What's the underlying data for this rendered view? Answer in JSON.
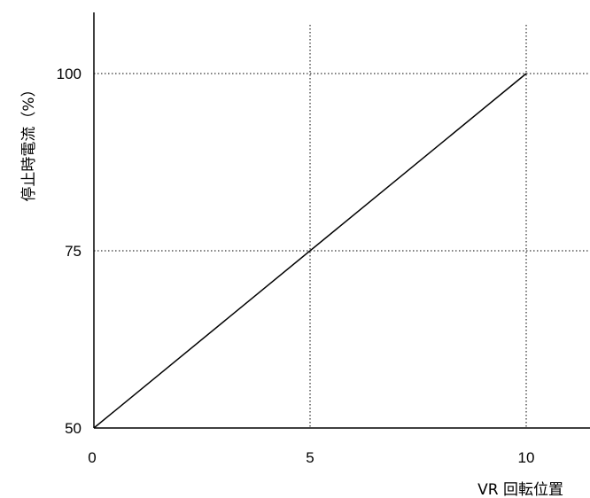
{
  "chart_data": {
    "type": "line",
    "xlabel": "VR 回転位置",
    "ylabel": "停止時電流（%）",
    "x_ticks": [
      0,
      5,
      10
    ],
    "y_ticks": [
      50,
      75,
      100
    ],
    "xlim": [
      0,
      11.5
    ],
    "ylim": [
      50,
      108
    ],
    "grid": "dotted at ticks",
    "series": [
      {
        "x": [
          0,
          10
        ],
        "y": [
          50,
          100
        ]
      }
    ]
  }
}
